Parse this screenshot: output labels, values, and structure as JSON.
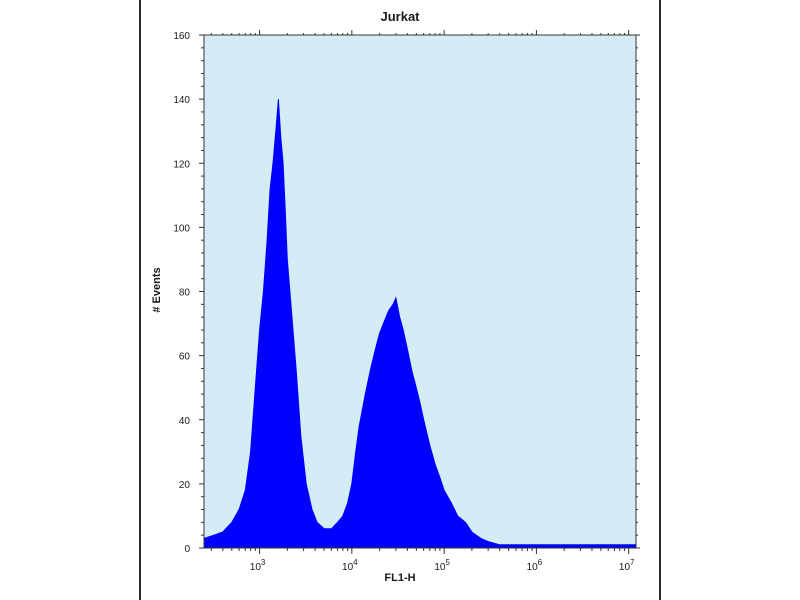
{
  "chart_data": {
    "type": "area",
    "title": "Jurkat",
    "xlabel": "FL1-H",
    "ylabel": "# Events",
    "x_scale": "log",
    "xlim": [
      250,
      12000000
    ],
    "ylim": [
      0,
      160
    ],
    "y_ticks": [
      0,
      20,
      40,
      60,
      80,
      100,
      120,
      140,
      160
    ],
    "x_ticks": [
      {
        "base": "10",
        "exp": "3",
        "value": 1000
      },
      {
        "base": "10",
        "exp": "4",
        "value": 10000
      },
      {
        "base": "10",
        "exp": "5",
        "value": 100000
      },
      {
        "base": "10",
        "exp": "6",
        "value": 1000000
      },
      {
        "base": "10",
        "exp": "7",
        "value": 10000000
      }
    ],
    "grid": false,
    "colors": {
      "fill": "#0000ff",
      "plot_background": "#d4ecf5",
      "axis": "#333333"
    },
    "series": [
      {
        "x": [
          250,
          320,
          400,
          500,
          600,
          700,
          800,
          900,
          1000,
          1100,
          1200,
          1300,
          1400,
          1500,
          1600,
          1700,
          1800,
          1900,
          2000,
          2200,
          2500,
          2800,
          3200,
          3700,
          4200,
          5000,
          6000,
          7000,
          8000,
          9000,
          10000,
          11000,
          12000,
          14000,
          16000,
          18000,
          20000,
          22000,
          25000,
          28000,
          30000,
          33000,
          36000,
          40000,
          45000,
          50000,
          55000,
          60000,
          70000,
          80000,
          90000,
          100000,
          120000,
          140000,
          170000,
          200000,
          250000,
          300000,
          400000,
          500000,
          700000,
          1000000,
          2000000,
          5000000,
          10000000,
          12000000
        ],
        "y": [
          3,
          4,
          5,
          8,
          12,
          18,
          30,
          50,
          68,
          80,
          95,
          112,
          120,
          130,
          140,
          128,
          120,
          105,
          90,
          75,
          55,
          35,
          20,
          12,
          8,
          6,
          6,
          8,
          10,
          14,
          20,
          30,
          38,
          48,
          56,
          62,
          67,
          70,
          74,
          76,
          78,
          72,
          68,
          62,
          55,
          50,
          45,
          40,
          32,
          26,
          22,
          18,
          14,
          10,
          8,
          5,
          3,
          2,
          1,
          1,
          1,
          1,
          1,
          1,
          1,
          1
        ]
      }
    ]
  }
}
